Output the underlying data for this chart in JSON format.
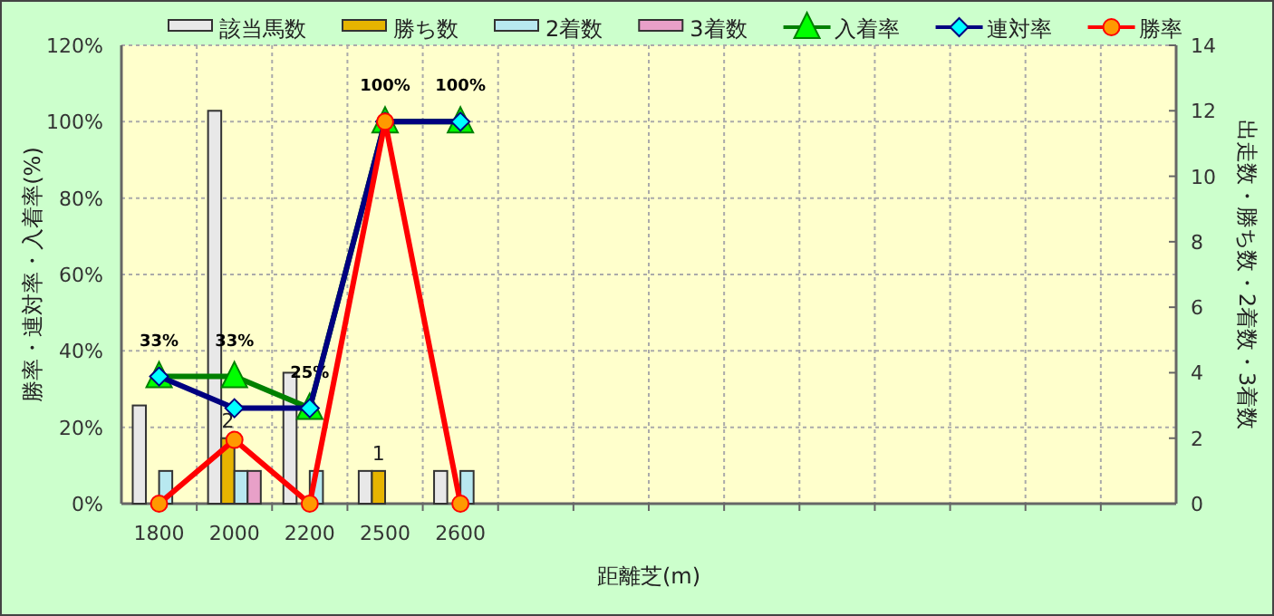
{
  "chart_data": {
    "type": "bar",
    "categories": [
      "1800",
      "2000",
      "2200",
      "2500",
      "2600",
      null,
      null,
      null,
      null,
      null,
      null,
      null,
      null,
      null
    ],
    "xlabel": "距離芝(m)",
    "ylabel": "勝率・連対率・入着率(%)",
    "y2label": "出走数・勝ち数・2着数・3着数",
    "ylim": [
      0,
      120
    ],
    "yticks": [
      {
        "value": 0,
        "label": "0%"
      },
      {
        "value": 20,
        "label": "20%"
      },
      {
        "value": 40,
        "label": "40%"
      },
      {
        "value": 60,
        "label": "60%"
      },
      {
        "value": 80,
        "label": "80%"
      },
      {
        "value": 100,
        "label": "100%"
      },
      {
        "value": 120,
        "label": "120%"
      }
    ],
    "y2lim": [
      0,
      14
    ],
    "y2ticks": [
      0,
      2,
      4,
      6,
      8,
      10,
      12,
      14
    ],
    "grid": true,
    "legend": "top",
    "series": [
      {
        "name": "該当馬数",
        "axis": "y2",
        "color": "#e8e8e8",
        "values": [
          3,
          12,
          4,
          1,
          1,
          null,
          null,
          null,
          null,
          null,
          null,
          null,
          null,
          null
        ]
      },
      {
        "name": "勝ち数",
        "axis": "y2",
        "color": "#e6b400",
        "values": [
          0,
          2,
          0,
          1,
          0,
          null,
          null,
          null,
          null,
          null,
          null,
          null,
          null,
          null
        ],
        "value_labels": [
          null,
          "2",
          null,
          "1",
          null,
          null,
          null,
          null,
          null,
          null,
          null,
          null,
          null,
          null
        ]
      },
      {
        "name": "2着数",
        "axis": "y2",
        "color": "#b8e8f0",
        "values": [
          1,
          1,
          1,
          0,
          1,
          null,
          null,
          null,
          null,
          null,
          null,
          null,
          null,
          null
        ]
      },
      {
        "name": "3着数",
        "axis": "y2",
        "color": "#e8a0c8",
        "values": [
          0,
          1,
          0,
          0,
          0,
          null,
          null,
          null,
          null,
          null,
          null,
          null,
          null,
          null
        ]
      },
      {
        "name": "入着率",
        "type": "line",
        "color": "#008000",
        "marker": "triangle",
        "values": [
          33.3,
          33.3,
          25,
          100,
          100,
          null,
          null,
          null,
          null,
          null,
          null,
          null,
          null,
          null
        ],
        "value_labels": [
          "33%",
          "33%",
          "25%",
          "100%",
          "100%",
          null,
          null,
          null,
          null,
          null,
          null,
          null,
          null,
          null
        ]
      },
      {
        "name": "連対率",
        "type": "line",
        "color": "#000080",
        "marker": "diamond",
        "values": [
          33.3,
          25,
          25,
          100,
          100,
          null,
          null,
          null,
          null,
          null,
          null,
          null,
          null,
          null
        ]
      },
      {
        "name": "勝率",
        "type": "line",
        "color": "#ff0000",
        "marker": "circle",
        "values": [
          0,
          16.7,
          0,
          100,
          0,
          null,
          null,
          null,
          null,
          null,
          null,
          null,
          null,
          null
        ]
      }
    ]
  }
}
